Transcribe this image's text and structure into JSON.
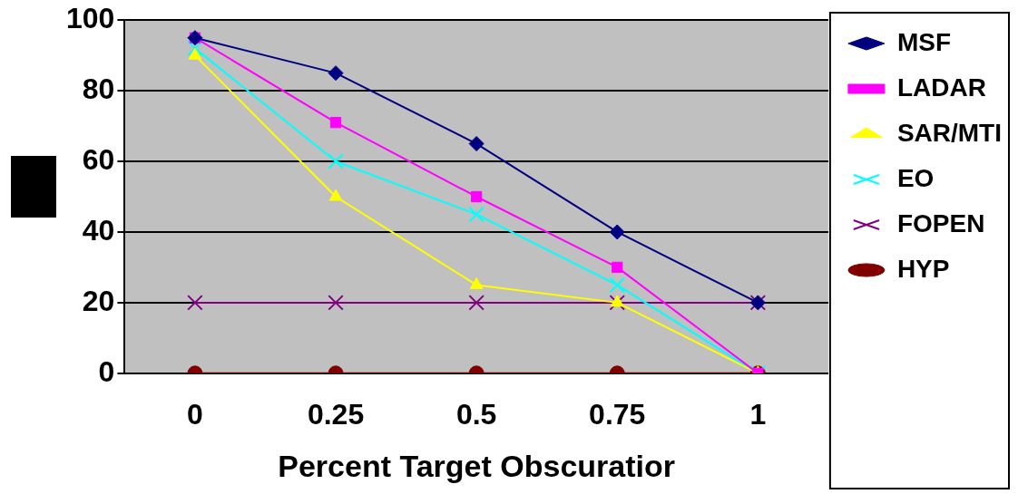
{
  "chart_data": {
    "type": "line",
    "xlabel": "Percent Target Obscuratior",
    "categories": [
      "0",
      "0.25",
      "0.5",
      "0.75",
      "1"
    ],
    "series": [
      {
        "name": "MSF",
        "color": "#000080",
        "marker": "diamond",
        "values": [
          95,
          85,
          65,
          40,
          20
        ]
      },
      {
        "name": "LADAR",
        "color": "#ff00ff",
        "marker": "square",
        "values": [
          95,
          71,
          50,
          30,
          0
        ]
      },
      {
        "name": "SAR/MTI",
        "color": "#ffff00",
        "marker": "triangle",
        "values": [
          90,
          50,
          25,
          20,
          0
        ]
      },
      {
        "name": "EO",
        "color": "#00ffff",
        "marker": "cross",
        "values": [
          92,
          60,
          45,
          25,
          0
        ]
      },
      {
        "name": "FOPEN",
        "color": "#800080",
        "marker": "cross",
        "values": [
          20,
          20,
          20,
          20,
          20
        ]
      },
      {
        "name": "HYP",
        "color": "#800000",
        "marker": "circle",
        "values": [
          0,
          0,
          0,
          0,
          0
        ]
      }
    ],
    "ylim": [
      0,
      100
    ],
    "yticks": [
      0,
      20,
      40,
      60,
      80,
      100
    ],
    "grid": "y",
    "legend": "right",
    "line_style": "solid"
  }
}
